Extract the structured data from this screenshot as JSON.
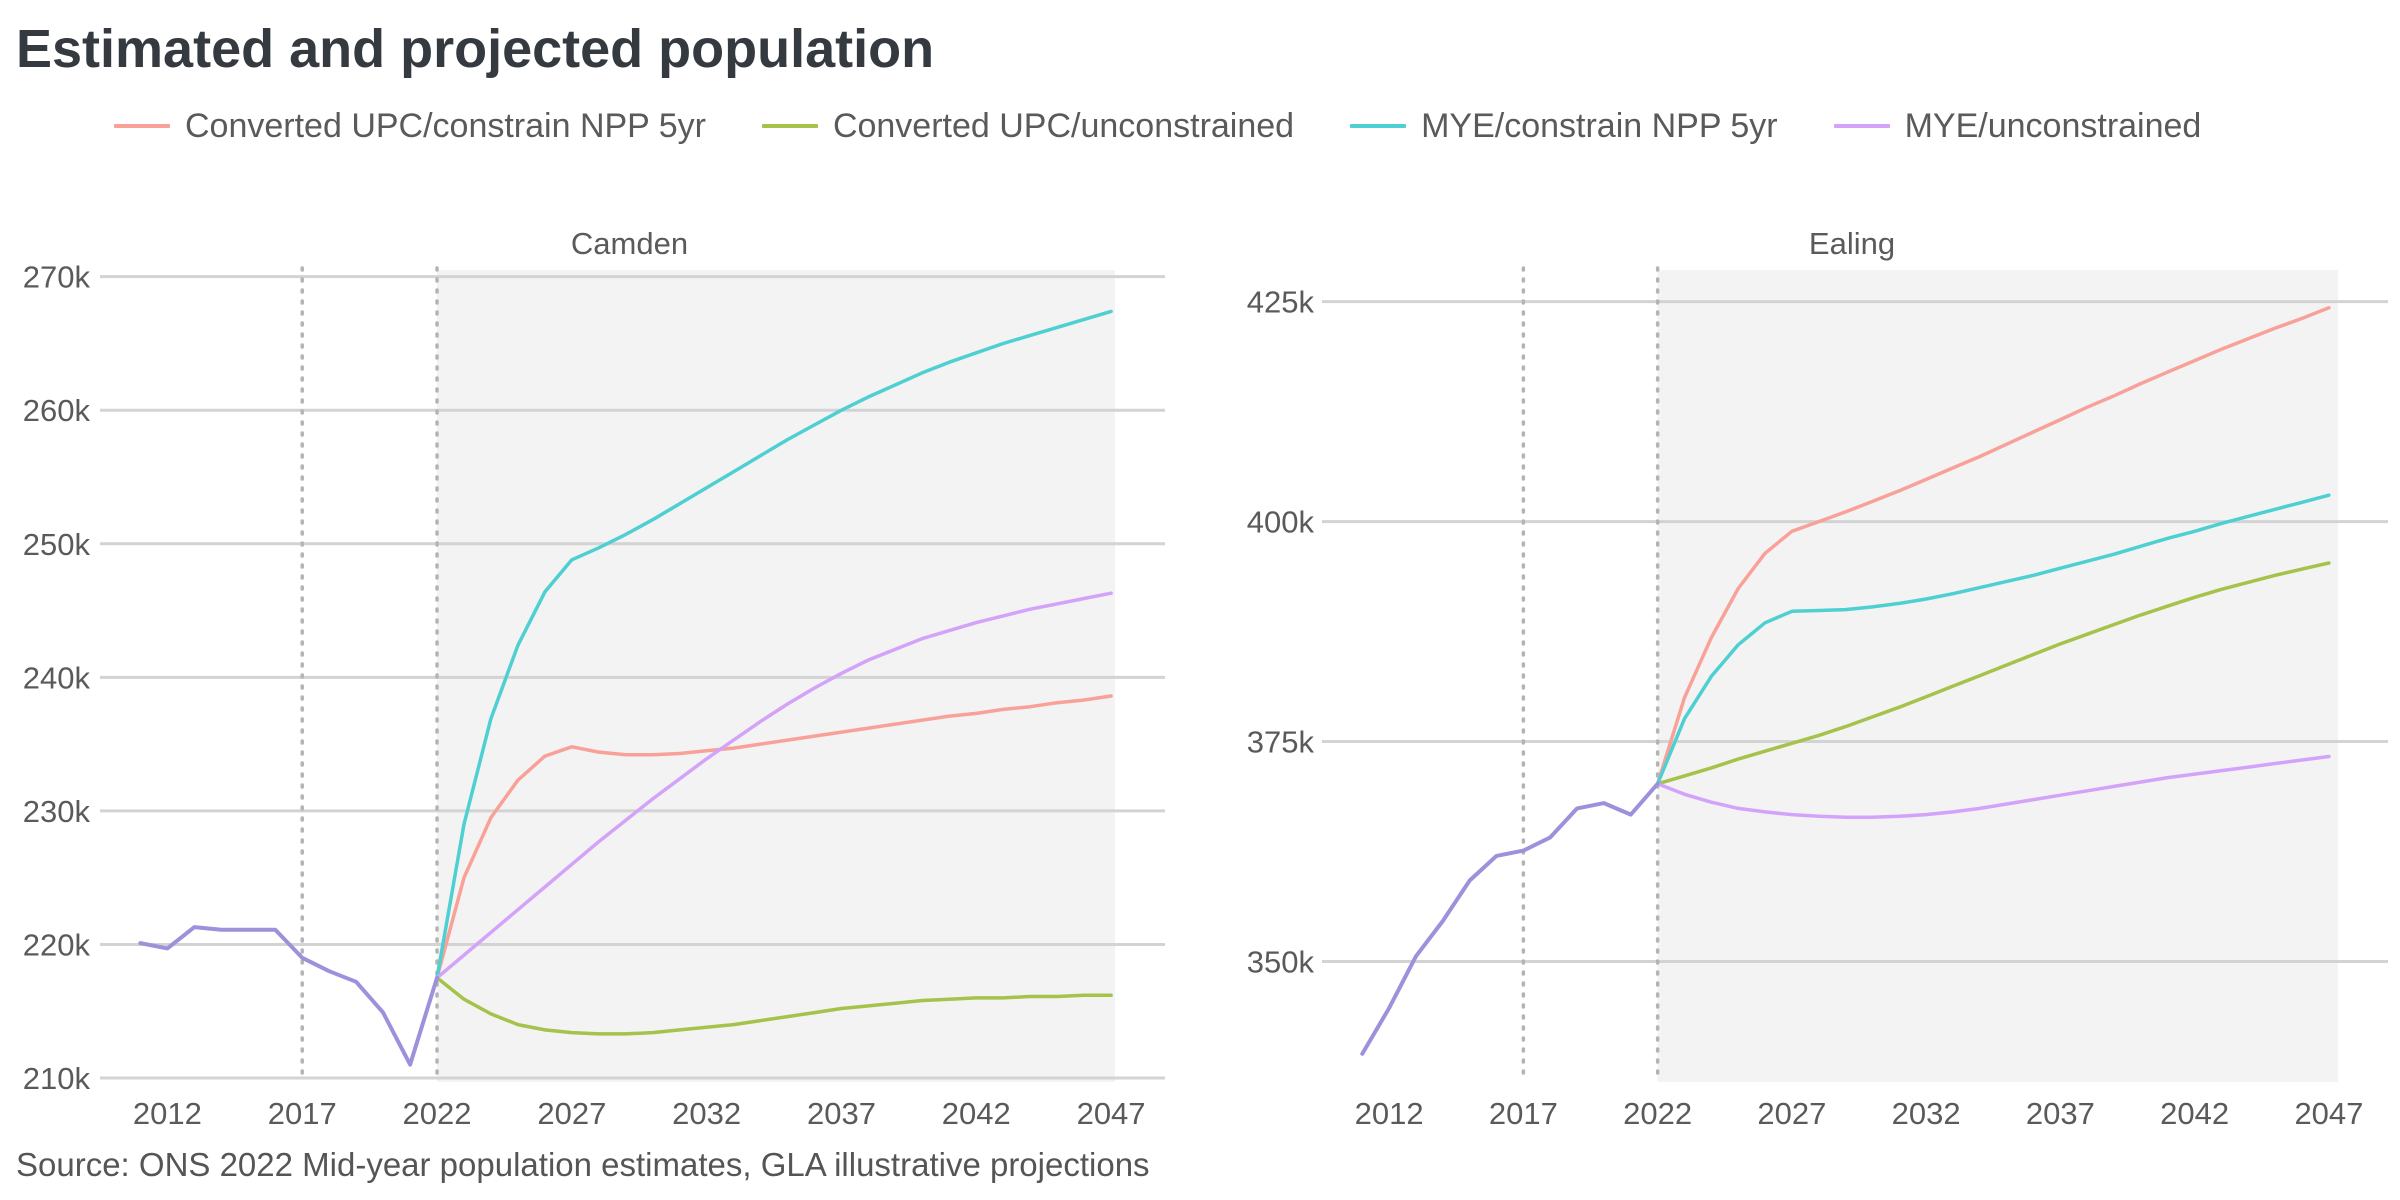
{
  "title": "Estimated and projected population",
  "source": "Source: ONS 2022 Mid-year population estimates, GLA illustrative projections",
  "legend": [
    {
      "label": "Converted UPC/constrain NPP 5yr",
      "color": "#F8A199"
    },
    {
      "label": "Converted UPC/unconstrained",
      "color": "#A5C24A"
    },
    {
      "label": "MYE/constrain NPP 5yr",
      "color": "#4ECFD2"
    },
    {
      "label": "MYE/unconstrained",
      "color": "#D3A3FA"
    }
  ],
  "chart_data": [
    {
      "type": "line",
      "title": "Camden",
      "x_ticks": [
        2012,
        2017,
        2022,
        2027,
        2032,
        2037,
        2042,
        2047
      ],
      "xlim": [
        2009.5,
        2049
      ],
      "y_ticks": [
        210000,
        220000,
        230000,
        240000,
        250000,
        260000,
        270000
      ],
      "y_tick_labels": [
        "210k",
        "220k",
        "230k",
        "240k",
        "250k",
        "260k",
        "270k"
      ],
      "ylim": [
        209700,
        270500
      ],
      "projection_start": 2022,
      "reference_lines": [
        2017,
        2022
      ],
      "historical": {
        "color": "#9D91DB",
        "x": [
          2011,
          2012,
          2013,
          2014,
          2015,
          2016,
          2017,
          2018,
          2019,
          2020,
          2021,
          2022
        ],
        "values": [
          220100,
          219700,
          221300,
          221100,
          221100,
          221100,
          219000,
          218000,
          217200,
          214900,
          211000,
          217500
        ]
      },
      "series": [
        {
          "name": "Converted UPC/constrain NPP 5yr",
          "color": "#F8A199",
          "x": [
            2022,
            2023,
            2024,
            2025,
            2026,
            2027,
            2028,
            2029,
            2030,
            2031,
            2032,
            2033,
            2034,
            2035,
            2036,
            2037,
            2038,
            2039,
            2040,
            2041,
            2042,
            2043,
            2044,
            2045,
            2046,
            2047
          ],
          "values": [
            217500,
            225000,
            229500,
            232300,
            234100,
            234800,
            234400,
            234200,
            234200,
            234300,
            234500,
            234700,
            235000,
            235300,
            235600,
            235900,
            236200,
            236500,
            236800,
            237100,
            237300,
            237600,
            237800,
            238100,
            238300,
            238600
          ]
        },
        {
          "name": "Converted UPC/unconstrained",
          "color": "#A5C24A",
          "x": [
            2022,
            2023,
            2024,
            2025,
            2026,
            2027,
            2028,
            2029,
            2030,
            2031,
            2032,
            2033,
            2034,
            2035,
            2036,
            2037,
            2038,
            2039,
            2040,
            2041,
            2042,
            2043,
            2044,
            2045,
            2046,
            2047
          ],
          "values": [
            217500,
            215900,
            214800,
            214000,
            213600,
            213400,
            213300,
            213300,
            213400,
            213600,
            213800,
            214000,
            214300,
            214600,
            214900,
            215200,
            215400,
            215600,
            215800,
            215900,
            216000,
            216000,
            216100,
            216100,
            216200,
            216200
          ]
        },
        {
          "name": "MYE/constrain NPP 5yr",
          "color": "#4ECFD2",
          "x": [
            2022,
            2023,
            2024,
            2025,
            2026,
            2027,
            2028,
            2029,
            2030,
            2031,
            2032,
            2033,
            2034,
            2035,
            2036,
            2037,
            2038,
            2039,
            2040,
            2041,
            2042,
            2043,
            2044,
            2045,
            2046,
            2047
          ],
          "values": [
            217500,
            229000,
            236900,
            242400,
            246400,
            248800,
            249700,
            250700,
            251800,
            253000,
            254200,
            255400,
            256600,
            257800,
            258900,
            260000,
            261000,
            261900,
            262800,
            263600,
            264300,
            265000,
            265600,
            266200,
            266800,
            267400
          ]
        },
        {
          "name": "MYE/unconstrained",
          "color": "#D3A3FA",
          "x": [
            2022,
            2023,
            2024,
            2025,
            2026,
            2027,
            2028,
            2029,
            2030,
            2031,
            2032,
            2033,
            2034,
            2035,
            2036,
            2037,
            2038,
            2039,
            2040,
            2041,
            2042,
            2043,
            2044,
            2045,
            2046,
            2047
          ],
          "values": [
            217500,
            219200,
            220900,
            222600,
            224300,
            226000,
            227700,
            229300,
            230900,
            232400,
            233900,
            235300,
            236700,
            238000,
            239200,
            240300,
            241300,
            242100,
            242900,
            243500,
            244100,
            244600,
            245100,
            245500,
            245900,
            246300
          ]
        }
      ]
    },
    {
      "type": "line",
      "title": "Ealing",
      "x_ticks": [
        2012,
        2017,
        2022,
        2027,
        2032,
        2037,
        2042,
        2047
      ],
      "xlim": [
        2009.5,
        2049.2
      ],
      "y_ticks": [
        350000,
        375000,
        400000,
        425000
      ],
      "y_tick_labels": [
        "350k",
        "375k",
        "400k",
        "425k"
      ],
      "ylim": [
        336300,
        428600
      ],
      "projection_start": 2022,
      "reference_lines": [
        2017,
        2022
      ],
      "historical": {
        "color": "#9D91DB",
        "x": [
          2011,
          2012,
          2013,
          2014,
          2015,
          2016,
          2017,
          2018,
          2019,
          2020,
          2021,
          2022
        ],
        "values": [
          339500,
          344700,
          350600,
          354600,
          359200,
          362000,
          362600,
          364100,
          367400,
          368000,
          366700,
          370200
        ]
      },
      "series": [
        {
          "name": "Converted UPC/constrain NPP 5yr",
          "color": "#F8A199",
          "x": [
            2022,
            2023,
            2024,
            2025,
            2026,
            2027,
            2028,
            2029,
            2030,
            2031,
            2032,
            2033,
            2034,
            2035,
            2036,
            2037,
            2038,
            2039,
            2040,
            2041,
            2042,
            2043,
            2044,
            2045,
            2046,
            2047
          ],
          "values": [
            370200,
            380000,
            386800,
            392400,
            396400,
            398900,
            400000,
            401100,
            402300,
            403500,
            404800,
            406100,
            407400,
            408800,
            410200,
            411600,
            413000,
            414300,
            415700,
            417000,
            418300,
            419600,
            420800,
            422000,
            423100,
            424300
          ]
        },
        {
          "name": "Converted UPC/unconstrained",
          "color": "#A5C24A",
          "x": [
            2022,
            2023,
            2024,
            2025,
            2026,
            2027,
            2028,
            2029,
            2030,
            2031,
            2032,
            2033,
            2034,
            2035,
            2036,
            2037,
            2038,
            2039,
            2040,
            2041,
            2042,
            2043,
            2044,
            2045,
            2046,
            2047
          ],
          "values": [
            370200,
            371100,
            372000,
            373000,
            373900,
            374800,
            375700,
            376700,
            377800,
            378900,
            380100,
            381300,
            382500,
            383700,
            384900,
            386100,
            387200,
            388300,
            389400,
            390400,
            391400,
            392300,
            393100,
            393900,
            394600,
            395300
          ]
        },
        {
          "name": "MYE/constrain NPP 5yr",
          "color": "#4ECFD2",
          "x": [
            2022,
            2023,
            2024,
            2025,
            2026,
            2027,
            2028,
            2029,
            2030,
            2031,
            2032,
            2033,
            2034,
            2035,
            2036,
            2037,
            2038,
            2039,
            2040,
            2041,
            2042,
            2043,
            2044,
            2045,
            2046,
            2047
          ],
          "values": [
            370200,
            377600,
            382400,
            386000,
            388500,
            389800,
            389900,
            390000,
            390300,
            390700,
            391200,
            391800,
            392500,
            393200,
            393900,
            394700,
            395500,
            396300,
            397200,
            398100,
            398900,
            399800,
            400600,
            401400,
            402200,
            403000
          ]
        },
        {
          "name": "MYE/unconstrained",
          "color": "#D3A3FA",
          "x": [
            2022,
            2023,
            2024,
            2025,
            2026,
            2027,
            2028,
            2029,
            2030,
            2031,
            2032,
            2033,
            2034,
            2035,
            2036,
            2037,
            2038,
            2039,
            2040,
            2041,
            2042,
            2043,
            2044,
            2045,
            2046,
            2047
          ],
          "values": [
            370200,
            369000,
            368100,
            367400,
            367000,
            366700,
            366500,
            366400,
            366400,
            366500,
            366700,
            367000,
            367400,
            367900,
            368400,
            368900,
            369400,
            369900,
            370400,
            370900,
            371300,
            371700,
            372100,
            372500,
            372900,
            373300
          ]
        }
      ]
    }
  ]
}
